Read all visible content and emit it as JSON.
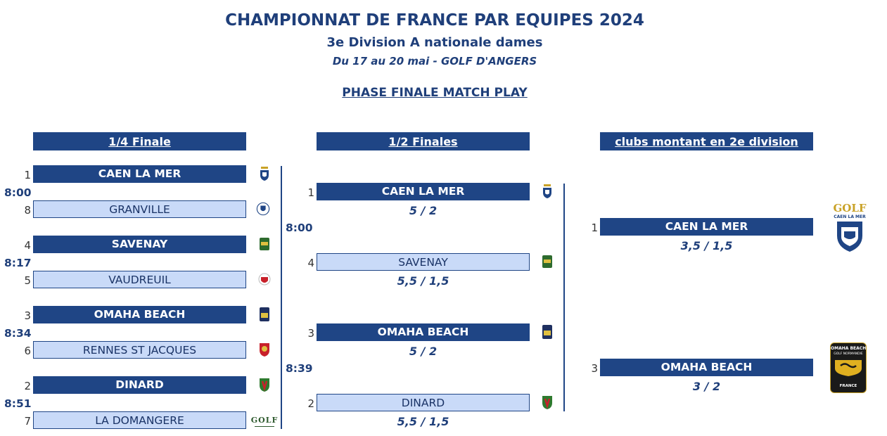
{
  "header": {
    "title": "CHAMPIONNAT DE FRANCE PAR EQUIPES 2024",
    "subtitle": "3e Division A nationale dames",
    "dates": "Du 17 au 20 mai - GOLF D'ANGERS",
    "phase": "PHASE FINALE MATCH PLAY"
  },
  "columns": {
    "quarter": "1/4 Finale",
    "semi": "1/2 Finales",
    "promoted": "clubs montant en 2e division"
  },
  "quarterfinals": [
    {
      "time": "8:00",
      "top": {
        "seed": "1",
        "name": "CAEN LA MER"
      },
      "bottom": {
        "seed": "8",
        "name": "GRANVILLE"
      }
    },
    {
      "time": "8:17",
      "top": {
        "seed": "4",
        "name": "SAVENAY"
      },
      "bottom": {
        "seed": "5",
        "name": "VAUDREUIL"
      }
    },
    {
      "time": "8:34",
      "top": {
        "seed": "3",
        "name": "OMAHA BEACH"
      },
      "bottom": {
        "seed": "6",
        "name": "RENNES ST JACQUES"
      }
    },
    {
      "time": "8:51",
      "top": {
        "seed": "2",
        "name": "DINARD"
      },
      "bottom": {
        "seed": "7",
        "name": "LA DOMANGERE"
      }
    }
  ],
  "semifinals": [
    {
      "time": "8:00",
      "top": {
        "seed": "1",
        "name": "CAEN LA MER",
        "score": "5 / 2"
      },
      "bottom": {
        "seed": "4",
        "name": "SAVENAY",
        "score": "5,5 / 1,5"
      }
    },
    {
      "time": "8:39",
      "top": {
        "seed": "3",
        "name": "OMAHA BEACH",
        "score": "5 / 2"
      },
      "bottom": {
        "seed": "2",
        "name": "DINARD",
        "score": "5,5 / 1,5"
      }
    }
  ],
  "promoted": [
    {
      "seed": "1",
      "name": "CAEN LA MER",
      "score": "3,5 / 1,5",
      "logo_text": "GOLF",
      "logo_sub": "CAEN LA MER"
    },
    {
      "seed": "3",
      "name": "OMAHA BEACH",
      "score": "3 / 2",
      "logo_text": "OMAHA BEACH",
      "logo_sub": "GOLF NORMANDIE",
      "logo_foot": "FRANCE"
    }
  ],
  "logos": {
    "la_domangere": "GOLF"
  },
  "colors": {
    "navy": "#1f4585",
    "light_blue": "#c9daf8",
    "title": "#1f3f7a"
  }
}
